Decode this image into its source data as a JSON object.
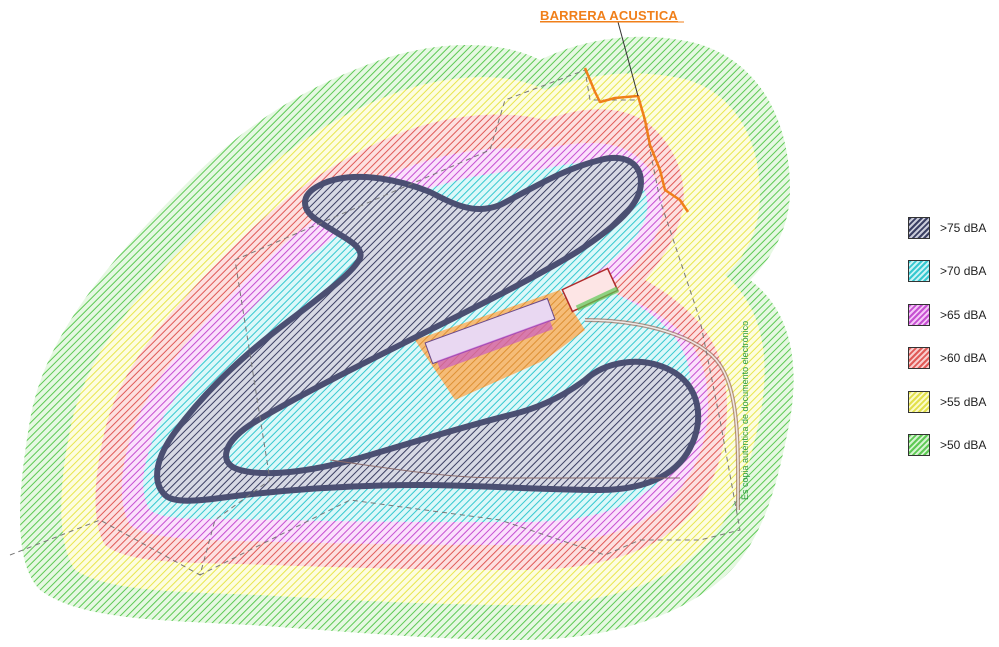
{
  "title": "BARRERA ACUSTICA",
  "watermark": "Es copia auténtica de documento electrónico",
  "legend": [
    {
      "label": ">75 dBA",
      "color": "#3b3f63",
      "fill": "#c9cbd8"
    },
    {
      "label": ">70 dBA",
      "color": "#35c8d0",
      "fill": "#c9f3f5"
    },
    {
      "label": ">65 dBA",
      "color": "#c54fd1",
      "fill": "#f4c5f7"
    },
    {
      "label": ">60 dBA",
      "color": "#e05a57",
      "fill": "#f8cccc"
    },
    {
      "label": ">55 dBA",
      "color": "#e2e04a",
      "fill": "#fbfac6"
    },
    {
      "label": ">50 dBA",
      "color": "#5dc954",
      "fill": "#d4f3cf"
    }
  ],
  "colors": {
    "barrier": "#f07f1a",
    "track": "#4b4f72",
    "boundary": "#777777"
  },
  "icons": {
    "pit_building": "building-icon"
  }
}
